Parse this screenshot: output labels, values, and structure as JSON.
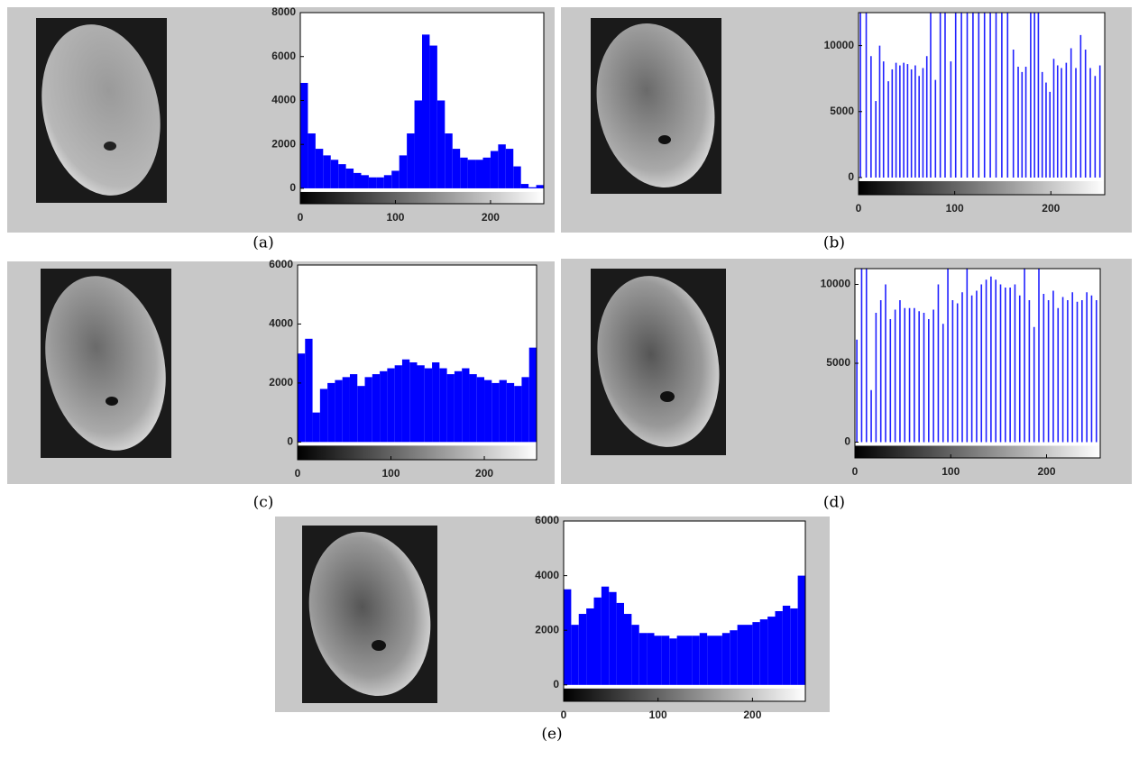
{
  "chart_data": [
    {
      "type": "histogram",
      "label": "(a)",
      "color": "#0000ff",
      "bins": [
        0,
        8,
        16,
        24,
        32,
        40,
        48,
        56,
        64,
        72,
        80,
        88,
        96,
        104,
        112,
        120,
        128,
        136,
        144,
        152,
        160,
        168,
        176,
        184,
        192,
        200,
        208,
        216,
        224,
        232,
        240,
        248,
        256
      ],
      "values": [
        4800,
        2500,
        1800,
        1500,
        1300,
        1100,
        900,
        700,
        600,
        500,
        500,
        600,
        800,
        1500,
        2500,
        4000,
        7000,
        6500,
        4000,
        2500,
        1800,
        1400,
        1300,
        1300,
        1400,
        1700,
        2000,
        1800,
        1000,
        200,
        50,
        150
      ],
      "xlim": [
        0,
        256
      ],
      "ylim": [
        -700,
        8000
      ],
      "xticks": [
        0,
        100,
        200
      ],
      "yticks": [
        0,
        2000,
        4000,
        6000,
        8000
      ]
    },
    {
      "type": "stem",
      "label": "(b)",
      "color": "#2020ff",
      "x": [
        2,
        8,
        13,
        18,
        22,
        26,
        31,
        35,
        39,
        43,
        47,
        51,
        55,
        59,
        63,
        67,
        71,
        75,
        80,
        85,
        90,
        96,
        101,
        107,
        113,
        119,
        125,
        131,
        137,
        143,
        149,
        155,
        161,
        166,
        170,
        174,
        179,
        183,
        187,
        191,
        195,
        199,
        203,
        207,
        211,
        216,
        221,
        226,
        231,
        236,
        241,
        246,
        251
      ],
      "values": [
        12500,
        12500,
        9200,
        5800,
        10000,
        8800,
        7300,
        8200,
        8700,
        8500,
        8700,
        8600,
        8200,
        8500,
        7700,
        8300,
        9200,
        12500,
        7400,
        12500,
        12500,
        8800,
        12500,
        12500,
        12500,
        12500,
        12500,
        12500,
        12500,
        12500,
        12500,
        12500,
        9700,
        8400,
        8000,
        8400,
        12500,
        12500,
        12500,
        8000,
        7200,
        6500,
        9000,
        8500,
        8300,
        8700,
        9800,
        8300,
        10800,
        9700,
        8300,
        7700,
        8500
      ],
      "xlim": [
        0,
        256
      ],
      "ylim": [
        -1300,
        12500
      ],
      "xticks": [
        0,
        100,
        200
      ],
      "yticks": [
        0,
        5000,
        10000
      ]
    },
    {
      "type": "histogram",
      "label": "(c)",
      "color": "#0000ff",
      "bins": [
        0,
        8,
        16,
        24,
        32,
        40,
        48,
        56,
        64,
        72,
        80,
        88,
        96,
        104,
        112,
        120,
        128,
        136,
        144,
        152,
        160,
        168,
        176,
        184,
        192,
        200,
        208,
        216,
        224,
        232,
        240,
        248,
        256
      ],
      "values": [
        3000,
        3500,
        1000,
        1800,
        2000,
        2100,
        2200,
        2300,
        1900,
        2200,
        2300,
        2400,
        2500,
        2600,
        2800,
        2700,
        2600,
        2500,
        2700,
        2500,
        2300,
        2400,
        2500,
        2300,
        2200,
        2100,
        2000,
        2100,
        2000,
        1900,
        2200,
        3200
      ],
      "xlim": [
        0,
        256
      ],
      "ylim": [
        -600,
        6000
      ],
      "xticks": [
        0,
        100,
        200
      ],
      "yticks": [
        0,
        2000,
        4000,
        6000
      ]
    },
    {
      "type": "stem",
      "label": "(d)",
      "color": "#2020ff",
      "x": [
        2,
        7,
        12,
        17,
        22,
        27,
        32,
        37,
        42,
        47,
        52,
        57,
        62,
        67,
        72,
        77,
        82,
        87,
        92,
        97,
        102,
        107,
        112,
        117,
        122,
        127,
        132,
        137,
        142,
        147,
        152,
        157,
        162,
        167,
        172,
        177,
        182,
        187,
        192,
        197,
        202,
        207,
        212,
        217,
        222,
        227,
        232,
        237,
        242,
        247,
        252
      ],
      "values": [
        6500,
        11000,
        11000,
        3300,
        8200,
        9000,
        10000,
        7800,
        8400,
        9000,
        8500,
        8500,
        8500,
        8300,
        8200,
        7800,
        8400,
        10000,
        7500,
        11000,
        9000,
        8800,
        9500,
        11000,
        9300,
        9600,
        10000,
        10300,
        10500,
        10300,
        10000,
        9800,
        9800,
        10000,
        9300,
        11000,
        9000,
        7300,
        11000,
        9400,
        9000,
        9600,
        8500,
        9200,
        9000,
        9500,
        8900,
        9000,
        9500,
        9300,
        9000
      ],
      "xlim": [
        0,
        256
      ],
      "ylim": [
        -1000,
        11000
      ],
      "xticks": [
        0,
        100,
        200
      ],
      "yticks": [
        0,
        5000,
        10000
      ]
    },
    {
      "type": "histogram",
      "label": "(e)",
      "color": "#0000ff",
      "bins": [
        0,
        8,
        16,
        24,
        32,
        40,
        48,
        56,
        64,
        72,
        80,
        88,
        96,
        104,
        112,
        120,
        128,
        136,
        144,
        152,
        160,
        168,
        176,
        184,
        192,
        200,
        208,
        216,
        224,
        232,
        240,
        248,
        256
      ],
      "values": [
        3500,
        2200,
        2600,
        2800,
        3200,
        3600,
        3400,
        3000,
        2600,
        2200,
        1900,
        1900,
        1800,
        1800,
        1700,
        1800,
        1800,
        1800,
        1900,
        1800,
        1800,
        1900,
        2000,
        2200,
        2200,
        2300,
        2400,
        2500,
        2700,
        2900,
        2800,
        4000
      ],
      "xlim": [
        0,
        256
      ],
      "ylim": [
        -600,
        6000
      ],
      "xticks": [
        0,
        100,
        200
      ],
      "yticks": [
        0,
        2000,
        4000,
        6000
      ]
    }
  ]
}
